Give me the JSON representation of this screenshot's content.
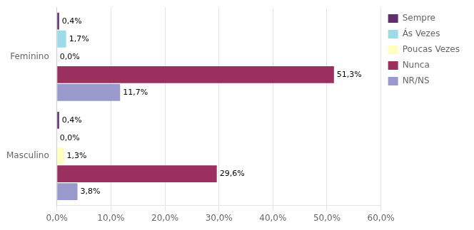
{
  "chart_data": {
    "type": "bar",
    "orientation": "horizontal",
    "categories": [
      "Feminino",
      "Masculino"
    ],
    "series": [
      {
        "name": "Sempre",
        "color": "#5F2F6E",
        "values": [
          0.4,
          0.4
        ],
        "value_labels": [
          "0,4%",
          "0,4%"
        ]
      },
      {
        "name": "Ás Vezes",
        "color": "#9EDBE8",
        "values": [
          1.7,
          0.0
        ],
        "value_labels": [
          "1,7%",
          "0,0%"
        ]
      },
      {
        "name": "Poucas Vezes",
        "color": "#FFFFC0",
        "values": [
          0.0,
          1.3
        ],
        "value_labels": [
          "0,0%",
          "1,3%"
        ]
      },
      {
        "name": "Nunca",
        "color": "#9B3060",
        "values": [
          51.3,
          29.6
        ],
        "value_labels": [
          "51,3%",
          "29,6%"
        ]
      },
      {
        "name": "NR/NS",
        "color": "#9999CC",
        "values": [
          11.7,
          3.8
        ],
        "value_labels": [
          "11,7%",
          "3,8%"
        ]
      }
    ],
    "xlim": [
      0,
      60
    ],
    "xticks": [
      {
        "value": 0,
        "label": "0,0%"
      },
      {
        "value": 10,
        "label": "10,0%"
      },
      {
        "value": 20,
        "label": "20,0%"
      },
      {
        "value": 30,
        "label": "30,0%"
      },
      {
        "value": 40,
        "label": "40,0%"
      },
      {
        "value": 50,
        "label": "50,0%"
      },
      {
        "value": 60,
        "label": "60,0%"
      }
    ],
    "grid": true,
    "legend": "right",
    "data_labels": true
  }
}
